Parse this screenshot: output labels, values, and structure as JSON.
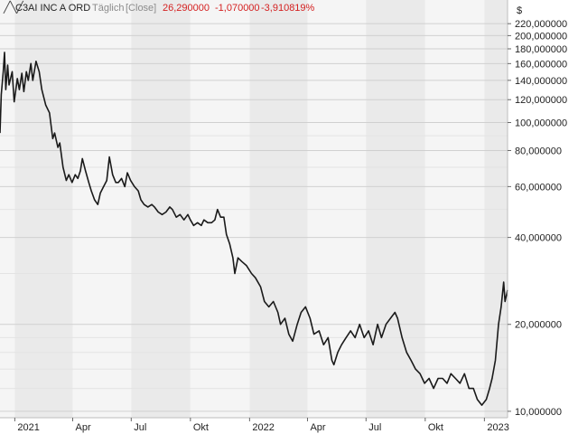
{
  "header": {
    "name": "C3AI INC A ORD",
    "interval": "Täglich",
    "mode": "[Close]",
    "last": "26,290000",
    "change": "-1,070000",
    "change_pct": "-3,910819%"
  },
  "colors": {
    "line": "#1a1a1a",
    "negative": "#d42020",
    "muted": "#8c8c8c",
    "band_dark": "#eaeaea",
    "band_light": "#f5f5f5",
    "grid": "#d0d0d0"
  },
  "chart_data": {
    "type": "line",
    "scale": "log",
    "currency_label": "$",
    "ylim": [
      9.5,
      230
    ],
    "xlim": [
      "2020-12-09",
      "2023-02-06"
    ],
    "y_ticks": [
      {
        "v": 10,
        "label": "10,000000"
      },
      {
        "v": 20,
        "label": "20,000000"
      },
      {
        "v": 40,
        "label": "40,000000"
      },
      {
        "v": 60,
        "label": "60,000000"
      },
      {
        "v": 80,
        "label": "80,000000"
      },
      {
        "v": 100,
        "label": "100,000000"
      },
      {
        "v": 120,
        "label": "120,000000"
      },
      {
        "v": 140,
        "label": "140,000000"
      },
      {
        "v": 160,
        "label": "160,000000"
      },
      {
        "v": 180,
        "label": "180,000000"
      },
      {
        "v": 200,
        "label": "200,000000"
      },
      {
        "v": 220,
        "label": "220,000000"
      }
    ],
    "x_ticks": [
      {
        "date": "2021-01-01",
        "label": "2021"
      },
      {
        "date": "2021-04-01",
        "label": "Apr"
      },
      {
        "date": "2021-07-01",
        "label": "Jul"
      },
      {
        "date": "2021-10-01",
        "label": "Okt"
      },
      {
        "date": "2022-01-01",
        "label": "2022"
      },
      {
        "date": "2022-04-01",
        "label": "Apr"
      },
      {
        "date": "2022-07-01",
        "label": "Jul"
      },
      {
        "date": "2022-10-01",
        "label": "Okt"
      },
      {
        "date": "2023-01-01",
        "label": "2023"
      }
    ],
    "series": [
      {
        "values": [
          [
            "2020-12-09",
            92
          ],
          [
            "2020-12-11",
            125
          ],
          [
            "2020-12-14",
            150
          ],
          [
            "2020-12-16",
            175
          ],
          [
            "2020-12-18",
            130
          ],
          [
            "2020-12-21",
            158
          ],
          [
            "2020-12-23",
            135
          ],
          [
            "2020-12-28",
            150
          ],
          [
            "2020-12-31",
            118
          ],
          [
            "2021-01-05",
            142
          ],
          [
            "2021-01-08",
            130
          ],
          [
            "2021-01-12",
            148
          ],
          [
            "2021-01-15",
            128
          ],
          [
            "2021-01-19",
            150
          ],
          [
            "2021-01-22",
            140
          ],
          [
            "2021-01-26",
            160
          ],
          [
            "2021-01-29",
            140
          ],
          [
            "2021-02-03",
            163
          ],
          [
            "2021-02-08",
            150
          ],
          [
            "2021-02-12",
            130
          ],
          [
            "2021-02-18",
            115
          ],
          [
            "2021-02-24",
            108
          ],
          [
            "2021-03-01",
            88
          ],
          [
            "2021-03-04",
            92
          ],
          [
            "2021-03-09",
            82
          ],
          [
            "2021-03-12",
            85
          ],
          [
            "2021-03-17",
            70
          ],
          [
            "2021-03-22",
            63
          ],
          [
            "2021-03-26",
            66
          ],
          [
            "2021-03-31",
            62
          ],
          [
            "2021-04-05",
            66
          ],
          [
            "2021-04-09",
            64
          ],
          [
            "2021-04-13",
            68
          ],
          [
            "2021-04-16",
            75
          ],
          [
            "2021-04-21",
            68
          ],
          [
            "2021-04-26",
            62
          ],
          [
            "2021-04-30",
            58
          ],
          [
            "2021-05-05",
            54
          ],
          [
            "2021-05-10",
            52
          ],
          [
            "2021-05-14",
            57
          ],
          [
            "2021-05-19",
            60
          ],
          [
            "2021-05-24",
            63
          ],
          [
            "2021-05-28",
            76
          ],
          [
            "2021-06-02",
            66
          ],
          [
            "2021-06-07",
            62
          ],
          [
            "2021-06-11",
            62
          ],
          [
            "2021-06-16",
            64
          ],
          [
            "2021-06-21",
            60
          ],
          [
            "2021-06-25",
            67
          ],
          [
            "2021-06-30",
            63
          ],
          [
            "2021-07-06",
            60
          ],
          [
            "2021-07-12",
            58
          ],
          [
            "2021-07-16",
            54
          ],
          [
            "2021-07-21",
            52
          ],
          [
            "2021-07-27",
            51
          ],
          [
            "2021-08-02",
            52
          ],
          [
            "2021-08-06",
            51
          ],
          [
            "2021-08-12",
            49
          ],
          [
            "2021-08-18",
            48
          ],
          [
            "2021-08-24",
            49
          ],
          [
            "2021-08-30",
            51
          ],
          [
            "2021-09-03",
            50
          ],
          [
            "2021-09-09",
            47
          ],
          [
            "2021-09-15",
            48
          ],
          [
            "2021-09-21",
            46
          ],
          [
            "2021-09-27",
            48
          ],
          [
            "2021-10-01",
            46
          ],
          [
            "2021-10-06",
            44
          ],
          [
            "2021-10-12",
            45
          ],
          [
            "2021-10-18",
            44
          ],
          [
            "2021-10-22",
            46
          ],
          [
            "2021-10-28",
            45
          ],
          [
            "2021-11-03",
            45
          ],
          [
            "2021-11-08",
            46
          ],
          [
            "2021-11-12",
            50
          ],
          [
            "2021-11-17",
            47
          ],
          [
            "2021-11-22",
            47
          ],
          [
            "2021-11-26",
            41
          ],
          [
            "2021-12-01",
            38
          ],
          [
            "2021-12-06",
            34
          ],
          [
            "2021-12-09",
            30
          ],
          [
            "2021-12-14",
            34
          ],
          [
            "2021-12-20",
            33
          ],
          [
            "2021-12-27",
            32
          ],
          [
            "2022-01-04",
            30
          ],
          [
            "2022-01-10",
            29
          ],
          [
            "2022-01-18",
            27
          ],
          [
            "2022-01-24",
            24
          ],
          [
            "2022-01-31",
            23
          ],
          [
            "2022-02-07",
            24
          ],
          [
            "2022-02-14",
            22
          ],
          [
            "2022-02-18",
            20
          ],
          [
            "2022-02-25",
            21
          ],
          [
            "2022-03-03",
            18.5
          ],
          [
            "2022-03-09",
            17.5
          ],
          [
            "2022-03-16",
            20
          ],
          [
            "2022-03-22",
            22
          ],
          [
            "2022-03-29",
            23
          ],
          [
            "2022-04-05",
            21
          ],
          [
            "2022-04-11",
            18.5
          ],
          [
            "2022-04-19",
            19
          ],
          [
            "2022-04-26",
            17
          ],
          [
            "2022-05-03",
            18
          ],
          [
            "2022-05-09",
            15
          ],
          [
            "2022-05-12",
            14.5
          ],
          [
            "2022-05-18",
            16
          ],
          [
            "2022-05-24",
            17
          ],
          [
            "2022-05-31",
            18
          ],
          [
            "2022-06-07",
            19
          ],
          [
            "2022-06-14",
            18
          ],
          [
            "2022-06-21",
            20
          ],
          [
            "2022-06-28",
            18
          ],
          [
            "2022-07-05",
            19
          ],
          [
            "2022-07-12",
            17
          ],
          [
            "2022-07-19",
            20
          ],
          [
            "2022-07-25",
            18
          ],
          [
            "2022-08-01",
            20
          ],
          [
            "2022-08-08",
            21
          ],
          [
            "2022-08-15",
            22
          ],
          [
            "2022-08-19",
            21
          ],
          [
            "2022-08-26",
            18
          ],
          [
            "2022-09-02",
            16
          ],
          [
            "2022-09-09",
            15
          ],
          [
            "2022-09-16",
            14
          ],
          [
            "2022-09-23",
            13.5
          ],
          [
            "2022-09-30",
            12.5
          ],
          [
            "2022-10-07",
            13
          ],
          [
            "2022-10-14",
            12
          ],
          [
            "2022-10-21",
            13
          ],
          [
            "2022-10-28",
            13
          ],
          [
            "2022-11-04",
            12.5
          ],
          [
            "2022-11-10",
            13.5
          ],
          [
            "2022-11-17",
            13
          ],
          [
            "2022-11-24",
            12.5
          ],
          [
            "2022-12-01",
            13.5
          ],
          [
            "2022-12-08",
            12
          ],
          [
            "2022-12-15",
            12
          ],
          [
            "2022-12-21",
            11
          ],
          [
            "2022-12-28",
            10.5
          ],
          [
            "2023-01-04",
            11
          ],
          [
            "2023-01-09",
            12
          ],
          [
            "2023-01-13",
            13
          ],
          [
            "2023-01-18",
            15
          ],
          [
            "2023-01-23",
            20
          ],
          [
            "2023-01-27",
            23
          ],
          [
            "2023-01-31",
            28
          ],
          [
            "2023-02-02",
            24
          ],
          [
            "2023-02-06",
            26.3
          ]
        ]
      }
    ]
  }
}
